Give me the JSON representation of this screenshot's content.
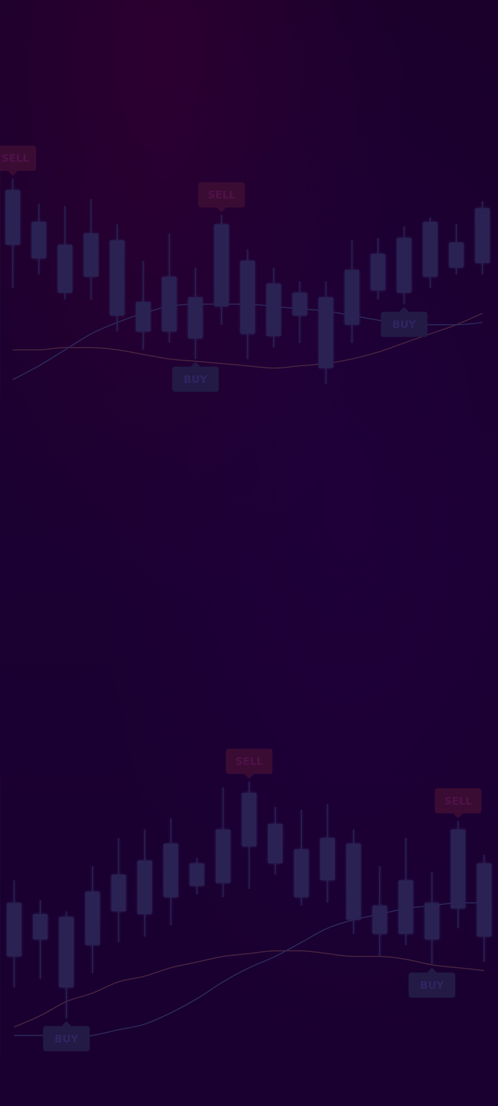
{
  "chart_data": [
    {
      "type": "candlestick",
      "tick_labels": false,
      "color": "#2b2152",
      "ylim": [
        0,
        100
      ],
      "categories": [
        null,
        null,
        null,
        null,
        null,
        null,
        null,
        null,
        null,
        null,
        null,
        null,
        null,
        null,
        null,
        null,
        null,
        null,
        null
      ],
      "open": [
        67,
        61,
        46,
        53,
        36,
        29,
        29,
        26,
        40,
        28,
        27,
        36,
        13,
        32,
        47,
        46,
        53,
        57,
        59
      ],
      "high": [
        96,
        85,
        84,
        87,
        76,
        60,
        72,
        57,
        80,
        65,
        57,
        51,
        51,
        69,
        70,
        75,
        79,
        76,
        86
      ],
      "low": [
        48,
        54,
        43,
        43,
        29,
        21,
        24,
        17,
        32,
        17,
        22,
        24,
        6,
        24,
        43,
        41,
        48,
        54,
        54
      ],
      "close": [
        91,
        77,
        67,
        72,
        69,
        42,
        53,
        44,
        76,
        60,
        50,
        46,
        44,
        56,
        63,
        70,
        77,
        68,
        83
      ],
      "series": [
        {
          "type": "line",
          "color": "#4a2440",
          "values": [
            21,
            21,
            22,
            22,
            21,
            19,
            17,
            16,
            15,
            14,
            13,
            14,
            15,
            17,
            20,
            24,
            28,
            32,
            37
          ]
        },
        {
          "type": "line",
          "color": "#2d2a5e",
          "values": [
            8,
            14,
            21,
            28,
            33,
            37,
            40,
            41,
            41,
            41,
            40,
            39,
            38,
            36,
            34,
            32,
            32,
            32,
            33
          ]
        }
      ],
      "annotations": [
        {
          "text": "SELL",
          "category": 0,
          "position": "above",
          "color": "#3a0c34"
        },
        {
          "text": "SELL",
          "category": 8,
          "position": "above",
          "color": "#3a0c34"
        },
        {
          "text": "BUY",
          "category": 7,
          "position": "below",
          "color": "#231a46"
        },
        {
          "text": "BUY",
          "category": 15,
          "position": "below",
          "color": "#231a46"
        }
      ]
    },
    {
      "type": "candlestick",
      "tick_labels": false,
      "color": "#2b2152",
      "ylim": [
        0,
        100
      ],
      "categories": [
        null,
        null,
        null,
        null,
        null,
        null,
        null,
        null,
        null,
        null,
        null,
        null,
        null,
        null,
        null,
        null,
        null,
        null,
        null
      ],
      "open": [
        36,
        42,
        25,
        40,
        52,
        51,
        57,
        61,
        62,
        75,
        69,
        57,
        63,
        49,
        44,
        44,
        42,
        53,
        43
      ],
      "high": [
        63,
        56,
        52,
        68,
        78,
        81,
        85,
        71,
        96,
        98,
        89,
        88,
        90,
        81,
        68,
        78,
        66,
        84,
        72
      ],
      "low": [
        25,
        28,
        14,
        30,
        41,
        43,
        47,
        58,
        57,
        60,
        65,
        54,
        55,
        44,
        36,
        40,
        33,
        46,
        34
      ],
      "close": [
        55,
        51,
        50,
        59,
        65,
        70,
        76,
        69,
        81,
        94,
        83,
        74,
        78,
        76,
        54,
        63,
        55,
        81,
        69
      ],
      "series": [
        {
          "type": "line",
          "color": "#4a2440",
          "values": [
            11,
            15,
            20,
            23,
            27,
            29,
            32,
            34,
            36,
            37,
            38,
            38,
            37,
            36,
            36,
            35,
            33,
            32,
            31
          ]
        },
        {
          "type": "line",
          "color": "#2d2a5e",
          "values": [
            8,
            8,
            7,
            8,
            10,
            12,
            16,
            21,
            27,
            32,
            36,
            41,
            46,
            49,
            51,
            53,
            54,
            55,
            55
          ]
        }
      ],
      "annotations": [
        {
          "text": "SELL",
          "category": 9,
          "position": "above",
          "color": "#3a0c34"
        },
        {
          "text": "SELL",
          "category": 17,
          "position": "above",
          "color": "#3a0c34"
        },
        {
          "text": "BUY",
          "category": 2,
          "position": "below",
          "color": "#231a46"
        },
        {
          "text": "BUY",
          "category": 16,
          "position": "below",
          "color": "#231a46"
        }
      ]
    }
  ]
}
